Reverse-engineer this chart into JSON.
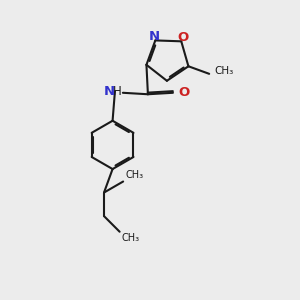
{
  "background_color": "#ececec",
  "bond_color": "#1a1a1a",
  "nitrogen_color": "#3333cc",
  "oxygen_color": "#cc2222",
  "line_width": 1.5,
  "dbo": 0.055,
  "figsize": [
    3.0,
    3.0
  ],
  "dpi": 100,
  "xlim": [
    0,
    10
  ],
  "ylim": [
    0,
    10
  ]
}
